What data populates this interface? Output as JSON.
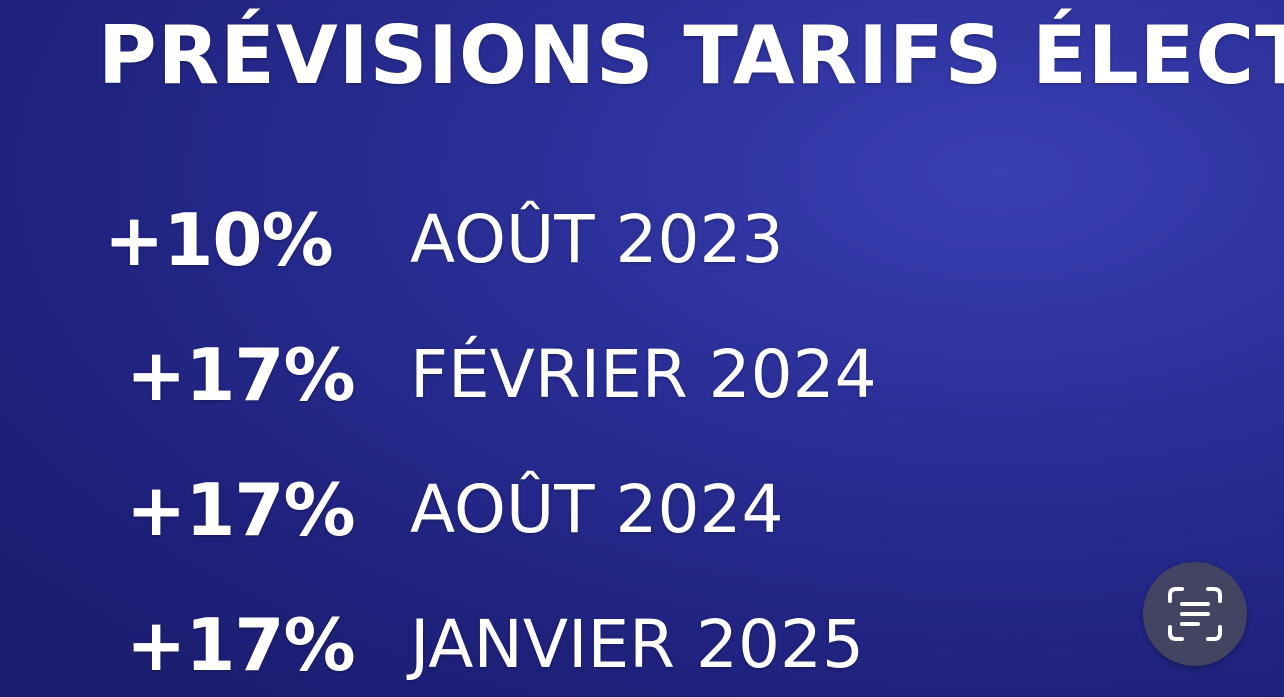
{
  "title": "PRÉVISIONS TARIFS ÉLECTRI",
  "forecasts": [
    {
      "increase": "+10%",
      "date": "AOÛT 2023"
    },
    {
      "increase": "+17%",
      "date": "FÉVRIER 2024"
    },
    {
      "increase": "+17%",
      "date": "AOÛT 2024"
    },
    {
      "increase": "+17%",
      "date": "JANVIER 2025"
    }
  ],
  "overlay": {
    "icon": "live-text-scan-icon",
    "background": "#46465f"
  },
  "colors": {
    "background_dark": "#1a1c6c",
    "background_light": "#3a3fb4",
    "text": "#ffffff"
  }
}
